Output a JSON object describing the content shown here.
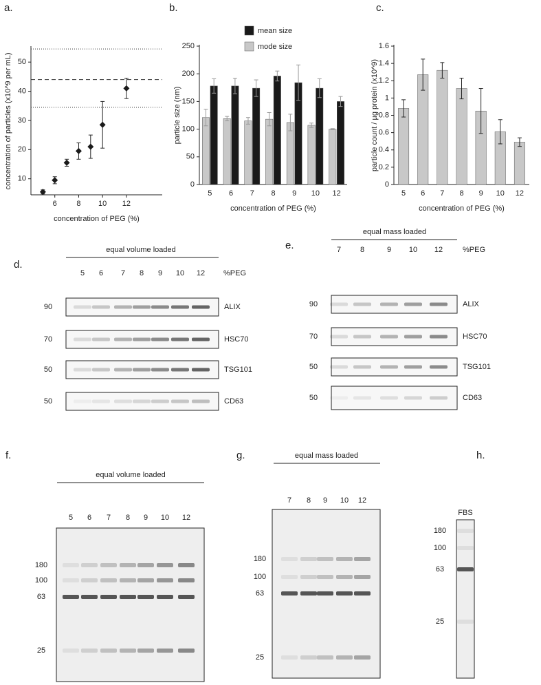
{
  "chart_data": [
    {
      "type": "scatter",
      "label": "a.",
      "xlabel": "concentration of PEG (%)",
      "ylabel": "concentration of particles (x10^9 per mL)",
      "x": [
        5,
        6,
        7,
        8,
        9,
        10,
        12
      ],
      "values": [
        5.5,
        9.5,
        15.5,
        19.5,
        21,
        28.5,
        41
      ],
      "errors": [
        0.7,
        1.2,
        1.2,
        2.8,
        4,
        8,
        3.5
      ],
      "color": "#1a1a1a",
      "xlim": [
        4,
        15
      ],
      "xticks": [
        6,
        8,
        10,
        12
      ],
      "ylim": [
        4.5,
        55
      ],
      "yticks": [
        10,
        20,
        30,
        40,
        50
      ],
      "hlines": [
        {
          "value": 54.5,
          "style": "dotted"
        },
        {
          "value": 44,
          "style": "dashed"
        },
        {
          "value": 34.5,
          "style": "dotted"
        }
      ]
    },
    {
      "type": "bar",
      "label": "b.",
      "xlabel": "concentration of PEG (%)",
      "ylabel": "particle size (nm)",
      "categories": [
        "5",
        "6",
        "7",
        "8",
        "9",
        "10",
        "12"
      ],
      "series": [
        {
          "name": "mean size",
          "color": "#1a1a1a",
          "values": [
            178,
            178,
            174,
            196,
            184,
            174,
            150
          ],
          "errors": [
            13,
            14,
            15,
            9,
            32,
            17,
            9
          ]
        },
        {
          "name": "mode size",
          "color": "#c8c8c8",
          "values": [
            121,
            119,
            115,
            118,
            112,
            107,
            100
          ],
          "errors": [
            15,
            4,
            6,
            12,
            15,
            4,
            1
          ]
        }
      ],
      "ylim": [
        0,
        250
      ],
      "yticks": [
        0,
        50,
        100,
        150,
        200,
        250
      ],
      "legend": "top"
    },
    {
      "type": "bar",
      "label": "c.",
      "xlabel": "concentration of PEG (%)",
      "ylabel": "particle count / µg protein (x10^9)",
      "categories": [
        "5",
        "6",
        "7",
        "8",
        "9",
        "10",
        "12"
      ],
      "series": [
        {
          "color": "#c8c8c8",
          "values": [
            0.88,
            1.27,
            1.32,
            1.11,
            0.85,
            0.61,
            0.49
          ],
          "errors": [
            0.1,
            0.18,
            0.09,
            0.12,
            0.26,
            0.14,
            0.05
          ]
        }
      ],
      "ylim": [
        0,
        1.6
      ],
      "yticks": [
        0,
        0.2,
        0.4,
        0.6,
        0.8,
        1,
        1.2,
        1.4,
        1.6
      ]
    }
  ],
  "blots": [
    {
      "label": "d.",
      "header": "equal volume loaded",
      "lanes": [
        "5",
        "6",
        "7",
        "8",
        "9",
        "10",
        "12"
      ],
      "lane_unit": "%PEG",
      "rows": [
        {
          "mw": "90",
          "name": "ALIX"
        },
        {
          "mw": "70",
          "name": "HSC70"
        },
        {
          "mw": "50",
          "name": "TSG101"
        },
        {
          "mw": "50",
          "name": "CD63"
        }
      ]
    },
    {
      "label": "e.",
      "header": "equal mass loaded",
      "lanes": [
        "7",
        "8",
        "9",
        "10",
        "12"
      ],
      "lane_unit": "%PEG",
      "rows": [
        {
          "mw": "90",
          "name": "ALIX"
        },
        {
          "mw": "70",
          "name": "HSC70"
        },
        {
          "mw": "50",
          "name": "TSG101"
        },
        {
          "mw": "50",
          "name": "CD63"
        }
      ]
    }
  ],
  "gels": [
    {
      "label": "f.",
      "header": "equal volume loaded",
      "lanes": [
        "5",
        "6",
        "7",
        "8",
        "9",
        "10",
        "12"
      ],
      "markers": [
        "180",
        "100",
        "63",
        "25"
      ]
    },
    {
      "label": "g.",
      "header": "equal mass loaded",
      "lanes": [
        "7",
        "8",
        "9",
        "10",
        "12"
      ],
      "markers": [
        "180",
        "100",
        "63",
        "25"
      ]
    },
    {
      "label": "h.",
      "lanes": [
        "FBS"
      ],
      "markers": [
        "180",
        "100",
        "63",
        "25"
      ]
    }
  ]
}
